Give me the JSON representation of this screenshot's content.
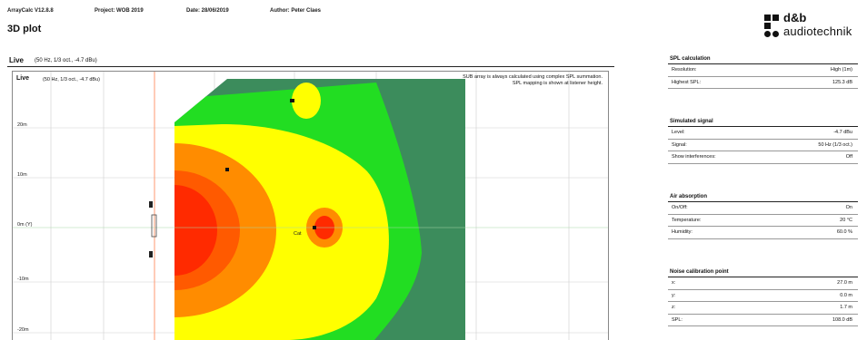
{
  "header": {
    "app": "ArrayCalc V12.8.8",
    "project": "Project: WOB 2019",
    "date": "Date: 28/06/2019",
    "author": "Author: Peter Claes"
  },
  "page_title": "3D plot",
  "logo": {
    "line1": "d&b",
    "line2": "audiotechnik"
  },
  "plot": {
    "bar_title": "Live",
    "bar_subtitle": "(50 Hz, 1/3 oct., -4.7 dBu)",
    "inner_title": "Live",
    "inner_subtitle": "(50 Hz, 1/3 oct., -4.7 dBu)",
    "note_line1": "SUB array is always calculated using complex SPL summation.",
    "note_line2": "SPL mapping is shown at listener height.",
    "y_ticks": [
      "20m",
      "10m",
      "0m (Y)",
      "-10m",
      "-20m"
    ],
    "marker_label": "Cat",
    "colors": {
      "red": "#ff2a00",
      "orange": "#ff8c00",
      "yellow": "#ffff00",
      "green": "#22dd22",
      "dark_green": "#3c8c5c",
      "guide_line": "#ff9a70",
      "grid": "#cfcfcf"
    }
  },
  "sidebar": [
    {
      "title": "SPL calculation",
      "rows": [
        {
          "label": "Resolution:",
          "value": "High (1m)"
        },
        {
          "label": "Highest SPL:",
          "value": "125.3 dB"
        }
      ]
    },
    {
      "title": "Simulated signal",
      "rows": [
        {
          "label": "Level:",
          "value": "-4.7 dBu"
        },
        {
          "label": "Signal:",
          "value": "50 Hz (1/3 oct.)"
        },
        {
          "label": "Show interferences:",
          "value": "Off"
        }
      ]
    },
    {
      "title": "Air absorption",
      "rows": [
        {
          "label": "On/Off:",
          "value": "On"
        },
        {
          "label": "Temperature:",
          "value": "20 °C"
        },
        {
          "label": "Humidity:",
          "value": "60.0 %"
        }
      ]
    },
    {
      "title": "Noise calibration point",
      "rows": [
        {
          "label": "x:",
          "value": "27.0 m"
        },
        {
          "label": "y:",
          "value": "0.0 m"
        },
        {
          "label": "z:",
          "value": "1.7 m"
        },
        {
          "label": "SPL:",
          "value": "108.0 dB"
        }
      ]
    }
  ]
}
